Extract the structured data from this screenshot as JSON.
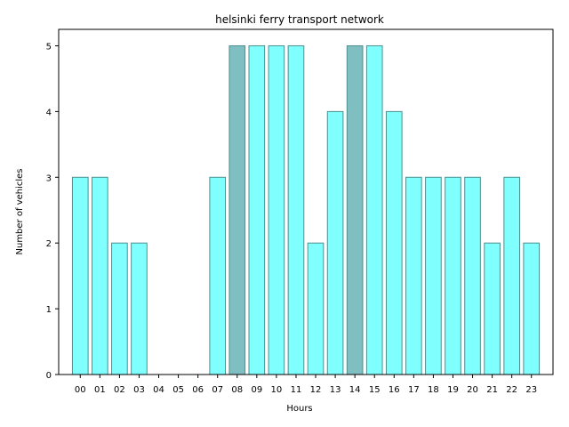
{
  "chart_data": {
    "type": "bar",
    "title": "helsinki ferry transport network",
    "xlabel": "Hours",
    "ylabel": "Number of vehicles",
    "categories": [
      "00",
      "01",
      "02",
      "03",
      "04",
      "05",
      "06",
      "07",
      "08",
      "09",
      "10",
      "11",
      "12",
      "13",
      "14",
      "15",
      "16",
      "17",
      "18",
      "19",
      "20",
      "21",
      "22",
      "23"
    ],
    "values": [
      3,
      3,
      2,
      2,
      0,
      0,
      0,
      3,
      5,
      5,
      5,
      5,
      2,
      4,
      5,
      5,
      4,
      3,
      3,
      3,
      3,
      2,
      3,
      2
    ],
    "highlighted": [
      "08",
      "14"
    ],
    "ylim": [
      0,
      5.25
    ],
    "yticks": [
      0,
      1,
      2,
      3,
      4,
      5
    ],
    "grid": false,
    "colors": {
      "bar": "#80ffff",
      "bar_highlight": "#80bfc1",
      "edge": "#4d8f8f",
      "axis": "#000000"
    }
  }
}
